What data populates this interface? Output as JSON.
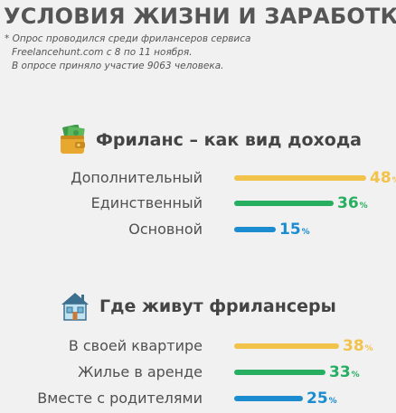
{
  "title": "УСЛОВИЯ ЖИЗНИ И ЗАРАБОТКА",
  "note": {
    "line1": "* Опрос проводился среди фрилансеров сервиса",
    "line2": "Freelancehunt.com с 8 по 11 ноября.",
    "line3": "В опросе приняло участие 9063 человека."
  },
  "chart_data": [
    {
      "type": "bar",
      "title": "Фриланс – как вид дохода",
      "icon": "wallet-icon",
      "categories": [
        "Дополнительный",
        "Единственный",
        "Основной"
      ],
      "values": [
        48,
        36,
        15
      ],
      "colors": [
        "#f2c34b",
        "#27ae60",
        "#1a8ccf"
      ],
      "unit": "%"
    },
    {
      "type": "bar",
      "title": "Где живут фрилансеры",
      "icon": "house-icon",
      "categories": [
        "В своей квартире",
        "Жилье в аренде",
        "Вместе с родителями"
      ],
      "values": [
        38,
        33,
        25
      ],
      "colors": [
        "#f2c34b",
        "#27ae60",
        "#1a8ccf"
      ],
      "unit": "%"
    }
  ]
}
